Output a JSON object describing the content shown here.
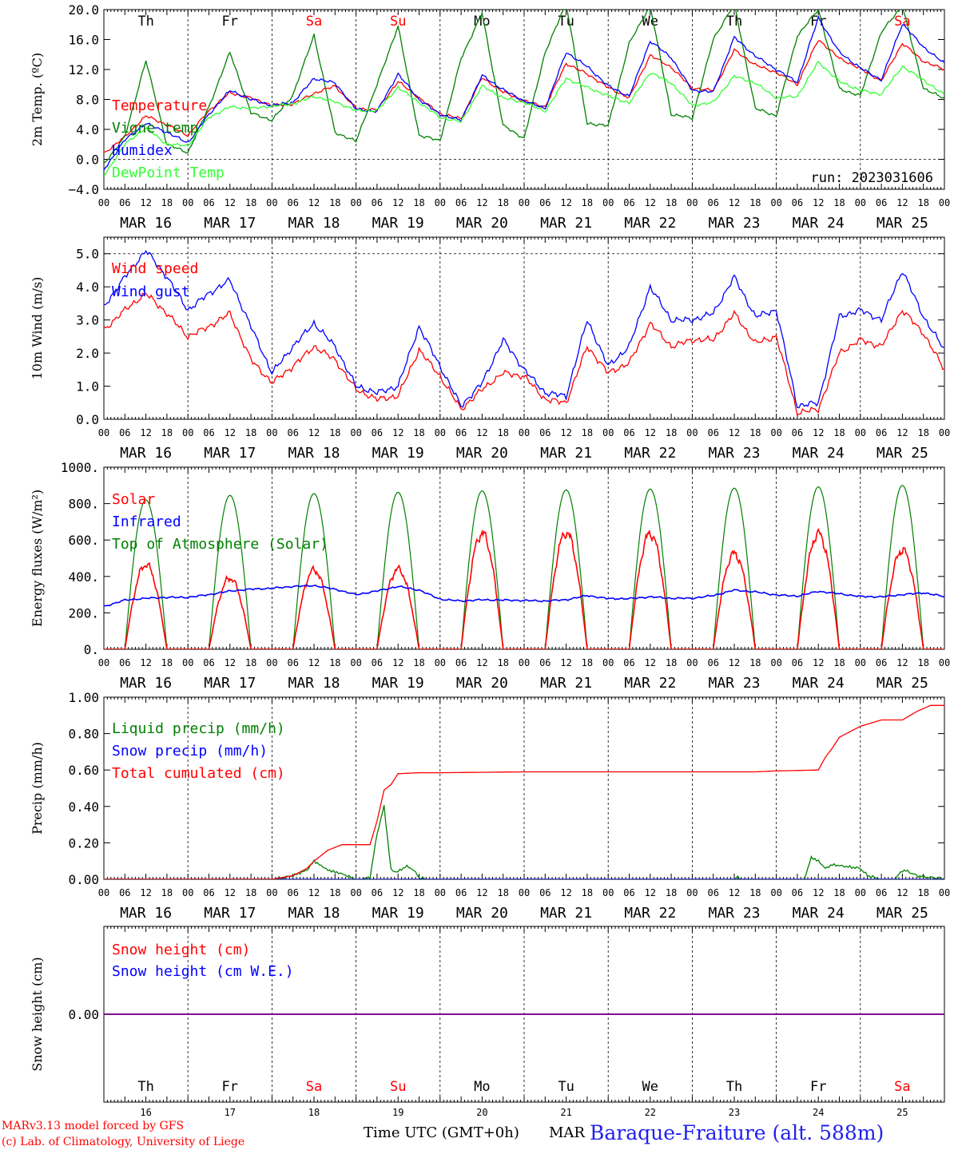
{
  "colors": {
    "red": "#ff0000",
    "green": "#008000",
    "blue": "#0000ff",
    "lightgreen": "#33ff33",
    "purple": "#800080",
    "weekend": "#ff0000"
  },
  "days": [
    {
      "abbr": "Th",
      "date": "MAR 16",
      "num": "16",
      "weekend": false
    },
    {
      "abbr": "Fr",
      "date": "MAR 17",
      "num": "17",
      "weekend": false
    },
    {
      "abbr": "Sa",
      "date": "MAR 18",
      "num": "18",
      "weekend": true
    },
    {
      "abbr": "Su",
      "date": "MAR 19",
      "num": "19",
      "weekend": true
    },
    {
      "abbr": "Mo",
      "date": "MAR 20",
      "num": "20",
      "weekend": false
    },
    {
      "abbr": "Tu",
      "date": "MAR 21",
      "num": "21",
      "weekend": false
    },
    {
      "abbr": "We",
      "date": "MAR 22",
      "num": "22",
      "weekend": false
    },
    {
      "abbr": "Th",
      "date": "MAR 23",
      "num": "23",
      "weekend": false
    },
    {
      "abbr": "Fr",
      "date": "MAR 24",
      "num": "24",
      "weekend": false
    },
    {
      "abbr": "Sa",
      "date": "MAR 25",
      "num": "25",
      "weekend": true
    }
  ],
  "hour_labels": [
    "00",
    "06",
    "12",
    "18"
  ],
  "footer": {
    "credit_line1": "MARv3.13 model forced by GFS",
    "credit_line2": "(c) Lab. of Climatology, University of Liege",
    "time_label": "Time UTC (GMT+0h)",
    "month_label": "MAR",
    "station": "Baraque-Fraiture (alt. 588m)"
  },
  "run_label": "run: 2023031606",
  "chart_data": [
    {
      "type": "line",
      "ylabel": "2m Temp. (ºC)",
      "ylim": [
        -4.0,
        20.0
      ],
      "yticks": [
        -4.0,
        0.0,
        4.0,
        8.0,
        12.0,
        16.0,
        20.0
      ],
      "ytick_labels": [
        "−4.0",
        "0.0",
        "4.0",
        "8.0",
        "12.0",
        "16.0",
        "20.0"
      ],
      "hlines": [
        0.0
      ],
      "x_unit": "hours since MAR 16 00 UTC",
      "legend": [
        "Temperature",
        "Vigne temp",
        "Humidex",
        "DewPoint Temp"
      ],
      "series": [
        {
          "name": "Temperature",
          "color": "red",
          "x": [
            0,
            6,
            12,
            18,
            24,
            30,
            36,
            42,
            48,
            54,
            60,
            66,
            72,
            78,
            84,
            90,
            96,
            102,
            108,
            114,
            120,
            126,
            132,
            138,
            144,
            150,
            156,
            162,
            168,
            174,
            180,
            186,
            192,
            198,
            204,
            210,
            216,
            222,
            228,
            234,
            240
          ],
          "y": [
            0.8,
            3.0,
            5.8,
            4.6,
            3.2,
            6.5,
            8.9,
            8.2,
            7.2,
            7.4,
            8.8,
            9.8,
            6.8,
            6.6,
            10.4,
            8.2,
            6.1,
            5.4,
            10.9,
            9.0,
            7.8,
            7.0,
            12.8,
            11.4,
            9.6,
            8.2,
            13.9,
            12.3,
            9.5,
            9.2,
            14.6,
            12.6,
            11.6,
            10.0,
            16.0,
            13.5,
            12.1,
            10.5,
            15.5,
            13.1,
            12.0
          ]
        },
        {
          "name": "Vigne temp",
          "color": "green",
          "x": [
            0,
            6,
            12,
            18,
            24,
            30,
            36,
            42,
            48,
            54,
            60,
            66,
            72,
            78,
            84,
            90,
            96,
            102,
            108,
            114,
            120,
            126,
            132,
            138,
            144,
            150,
            156,
            162,
            168,
            174,
            180,
            186,
            192,
            198,
            204,
            210,
            216,
            222,
            228,
            234,
            240
          ],
          "y": [
            -0.6,
            3.0,
            13.2,
            2.0,
            0.9,
            7.0,
            14.3,
            6.2,
            5.2,
            8.6,
            16.6,
            3.6,
            2.4,
            10.0,
            17.8,
            3.2,
            2.5,
            13.5,
            19.5,
            4.5,
            2.8,
            14.3,
            20.8,
            4.8,
            4.5,
            15.5,
            20.5,
            6.0,
            5.5,
            16.0,
            20.8,
            6.8,
            5.8,
            16.5,
            20.0,
            9.4,
            8.5,
            17.0,
            20.5,
            9.5,
            8.1
          ]
        },
        {
          "name": "Humidex",
          "color": "blue",
          "x": [
            0,
            6,
            12,
            18,
            24,
            30,
            36,
            42,
            48,
            54,
            60,
            66,
            72,
            78,
            84,
            90,
            96,
            102,
            108,
            114,
            120,
            126,
            132,
            138,
            144,
            150,
            156,
            162,
            168,
            174,
            180,
            186,
            192,
            198,
            204,
            210,
            216,
            222,
            228,
            234,
            240
          ],
          "y": [
            -1.4,
            2.6,
            4.8,
            3.6,
            2.2,
            6.0,
            9.2,
            8.0,
            7.2,
            7.6,
            10.8,
            10.2,
            6.7,
            6.4,
            11.4,
            8.0,
            6.0,
            5.2,
            11.2,
            9.3,
            7.8,
            6.8,
            14.3,
            12.4,
            9.8,
            8.4,
            15.8,
            13.6,
            9.2,
            9.0,
            16.3,
            13.8,
            12.0,
            10.3,
            18.9,
            14.3,
            12.2,
            10.6,
            18.1,
            15.0,
            12.8
          ]
        },
        {
          "name": "DewPoint Temp",
          "color": "lightgreen",
          "x": [
            0,
            6,
            12,
            18,
            24,
            30,
            36,
            42,
            48,
            54,
            60,
            66,
            72,
            78,
            84,
            90,
            96,
            102,
            108,
            114,
            120,
            126,
            132,
            138,
            144,
            150,
            156,
            162,
            168,
            174,
            180,
            186,
            192,
            198,
            204,
            210,
            216,
            222,
            228,
            234,
            240
          ],
          "y": [
            -2.2,
            2.0,
            4.2,
            2.0,
            1.8,
            5.6,
            7.0,
            6.8,
            7.1,
            7.4,
            8.4,
            7.7,
            6.5,
            6.5,
            9.6,
            7.6,
            5.6,
            5.0,
            9.8,
            8.2,
            7.6,
            6.4,
            10.8,
            9.6,
            8.5,
            7.5,
            11.6,
            10.2,
            7.2,
            7.6,
            11.1,
            10.2,
            8.2,
            8.4,
            13.0,
            10.4,
            9.2,
            8.7,
            12.4,
            10.6,
            8.6
          ]
        }
      ]
    },
    {
      "type": "line",
      "ylabel": "10m Wind (m/s)",
      "ylim": [
        0.0,
        5.5
      ],
      "yticks": [
        0.0,
        1.0,
        2.0,
        3.0,
        4.0,
        5.0
      ],
      "ytick_labels": [
        "0.0",
        "1.0",
        "2.0",
        "3.0",
        "4.0",
        "5.0"
      ],
      "hlines": [
        5.0
      ],
      "x_unit": "hours since MAR 16 00 UTC",
      "legend": [
        "Wind speed",
        "Wind gust"
      ],
      "series": [
        {
          "name": "Wind speed",
          "color": "red",
          "x": [
            0,
            6,
            12,
            18,
            24,
            30,
            36,
            42,
            48,
            54,
            60,
            66,
            72,
            78,
            84,
            90,
            96,
            102,
            108,
            114,
            120,
            126,
            132,
            138,
            144,
            150,
            156,
            162,
            168,
            174,
            180,
            186,
            192,
            198,
            204,
            210,
            216,
            222,
            228,
            234,
            240
          ],
          "y": [
            2.7,
            3.3,
            3.8,
            3.2,
            2.5,
            2.8,
            3.2,
            1.8,
            1.1,
            1.6,
            2.2,
            1.8,
            0.9,
            0.6,
            0.7,
            2.1,
            1.3,
            0.3,
            0.9,
            1.4,
            1.3,
            0.6,
            0.5,
            2.2,
            1.4,
            1.7,
            2.9,
            2.2,
            2.4,
            2.4,
            3.2,
            2.3,
            2.5,
            0.2,
            0.3,
            2.0,
            2.4,
            2.2,
            3.3,
            2.6,
            1.5
          ]
        },
        {
          "name": "Wind gust",
          "color": "blue",
          "x": [
            0,
            6,
            12,
            18,
            24,
            30,
            36,
            42,
            48,
            54,
            60,
            66,
            72,
            78,
            84,
            90,
            96,
            102,
            108,
            114,
            120,
            126,
            132,
            138,
            144,
            150,
            156,
            162,
            168,
            174,
            180,
            186,
            192,
            198,
            204,
            210,
            216,
            222,
            228,
            234,
            240
          ],
          "y": [
            3.4,
            4.3,
            5.1,
            4.3,
            3.3,
            3.8,
            4.2,
            2.8,
            1.4,
            2.2,
            2.9,
            2.2,
            1.0,
            0.8,
            1.0,
            2.8,
            1.6,
            0.4,
            1.1,
            2.4,
            1.5,
            0.8,
            0.7,
            3.0,
            1.6,
            2.2,
            4.0,
            3.0,
            3.0,
            3.2,
            4.3,
            3.1,
            3.3,
            0.4,
            0.5,
            3.1,
            3.3,
            3.0,
            4.5,
            3.1,
            2.1
          ]
        }
      ]
    },
    {
      "type": "line",
      "ylabel": "Energy fluxes (W/m²)",
      "ylim": [
        0.0,
        1000.0
      ],
      "yticks": [
        0,
        200,
        400,
        600,
        800,
        1000
      ],
      "ytick_labels": [
        "0.",
        "200.",
        "400.",
        "600.",
        "800.",
        "1000."
      ],
      "hlines": [],
      "x_unit": "hours since MAR 16 00 UTC",
      "legend": [
        "Solar",
        "Infrared",
        "Top of Atmosphere (Solar)"
      ],
      "toa_peaks": [
        820,
        845,
        855,
        862,
        870,
        875,
        880,
        885,
        892,
        900
      ],
      "solar_peaks": [
        465,
        390,
        435,
        440,
        635,
        640,
        635,
        525,
        635,
        545
      ],
      "sun_rise_hour": 6.0,
      "sun_set_hour": 18.0,
      "series": [
        {
          "name": "Infrared",
          "color": "blue",
          "x": [
            0,
            6,
            12,
            18,
            24,
            30,
            36,
            42,
            48,
            54,
            60,
            66,
            72,
            78,
            84,
            90,
            96,
            102,
            108,
            114,
            120,
            126,
            132,
            138,
            144,
            150,
            156,
            162,
            168,
            174,
            180,
            186,
            192,
            198,
            204,
            210,
            216,
            222,
            228,
            234,
            240
          ],
          "y": [
            235,
            270,
            280,
            285,
            285,
            300,
            320,
            330,
            335,
            345,
            350,
            330,
            300,
            320,
            345,
            325,
            275,
            265,
            272,
            270,
            268,
            265,
            272,
            295,
            278,
            278,
            288,
            280,
            280,
            295,
            325,
            315,
            298,
            292,
            318,
            305,
            290,
            288,
            300,
            310,
            290
          ]
        }
      ]
    },
    {
      "type": "line",
      "ylabel": "Precip (mm/h)",
      "ylim": [
        0.0,
        1.0
      ],
      "yticks": [
        0.0,
        0.2,
        0.4,
        0.6,
        0.8,
        1.0
      ],
      "ytick_labels": [
        "0.00",
        "0.20",
        "0.40",
        "0.60",
        "0.80",
        "1.00"
      ],
      "hlines": [],
      "x_unit": "hours since MAR 16 00 UTC",
      "legend": [
        "Liquid precip (mm/h)",
        "Snow precip (mm/h)",
        "Total cumulated (cm)"
      ],
      "series": [
        {
          "name": "Liquid precip (mm/h)",
          "color": "green",
          "x": [
            0,
            48,
            50,
            54,
            58,
            60,
            64,
            68,
            72,
            74,
            76,
            78,
            80,
            82,
            84,
            86,
            88,
            90,
            92,
            120,
            180,
            181,
            182,
            200,
            202,
            204,
            206,
            208,
            212,
            216,
            218,
            222,
            226,
            228,
            230,
            232,
            240
          ],
          "y": [
            0,
            0,
            0.005,
            0.02,
            0.05,
            0.1,
            0.05,
            0.03,
            0,
            0,
            0.01,
            0.25,
            0.4,
            0.05,
            0.04,
            0.07,
            0.06,
            0.01,
            0,
            0,
            0,
            0.01,
            0,
            0,
            0.12,
            0.1,
            0.06,
            0.08,
            0.07,
            0.06,
            0.02,
            0,
            0,
            0.05,
            0.04,
            0.02,
            0
          ]
        },
        {
          "name": "Snow precip (mm/h)",
          "color": "blue",
          "x": [
            0,
            240
          ],
          "y": [
            0,
            0
          ]
        },
        {
          "name": "Total cumulated (cm)",
          "color": "red",
          "x": [
            0,
            48,
            54,
            58,
            60,
            64,
            68,
            72,
            76,
            78,
            80,
            82,
            84,
            90,
            96,
            120,
            144,
            168,
            186,
            192,
            204,
            206,
            208,
            210,
            212,
            216,
            222,
            228,
            232,
            236,
            240
          ],
          "y": [
            0,
            0,
            0.02,
            0.06,
            0.1,
            0.16,
            0.19,
            0.19,
            0.19,
            0.32,
            0.49,
            0.52,
            0.58,
            0.585,
            0.585,
            0.59,
            0.59,
            0.59,
            0.59,
            0.595,
            0.6,
            0.67,
            0.72,
            0.78,
            0.8,
            0.84,
            0.875,
            0.875,
            0.92,
            0.955,
            0.955
          ]
        }
      ]
    },
    {
      "type": "line",
      "ylabel": "Snow height (cm)",
      "ylim": [
        -1.0,
        1.0
      ],
      "yticks": [
        0.0
      ],
      "ytick_labels": [
        "0.00"
      ],
      "hlines": [],
      "x_unit": "hours since MAR 16 00 UTC",
      "legend": [
        "Snow height (cm)",
        "Snow height (cm W.E.)"
      ],
      "series": [
        {
          "name": "Snow height (cm)",
          "color": "red",
          "x": [
            0,
            240
          ],
          "y": [
            0,
            0
          ]
        },
        {
          "name": "Snow height (cm W.E.)",
          "color": "blue",
          "x": [
            0,
            240
          ],
          "y": [
            0,
            0
          ]
        }
      ]
    }
  ]
}
